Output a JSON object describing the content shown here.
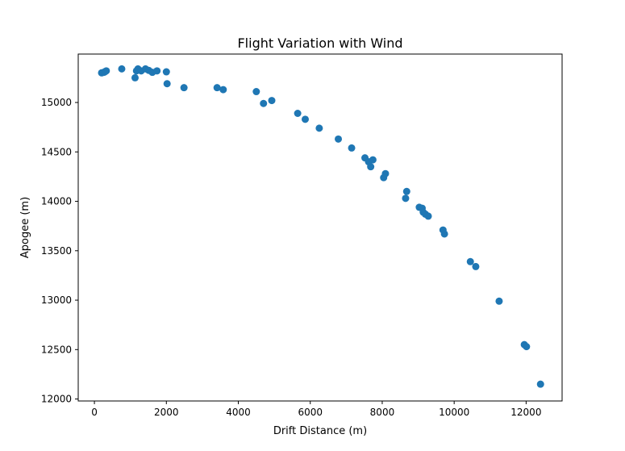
{
  "chart_data": {
    "type": "scatter",
    "title": "Flight Variation with Wind",
    "xlabel": "Drift Distance (m)",
    "ylabel": "Apogee (m)",
    "xlim": [
      -450,
      13000
    ],
    "ylim": [
      11980,
      15490
    ],
    "xticks": [
      0,
      2000,
      4000,
      6000,
      8000,
      10000,
      12000
    ],
    "yticks": [
      12000,
      12500,
      13000,
      13500,
      14000,
      14500,
      15000
    ],
    "marker_color": "#1f77b4",
    "grid": false,
    "points": [
      [
        200,
        15300
      ],
      [
        260,
        15305
      ],
      [
        290,
        15310
      ],
      [
        330,
        15320
      ],
      [
        760,
        15340
      ],
      [
        1130,
        15250
      ],
      [
        1170,
        15320
      ],
      [
        1210,
        15340
      ],
      [
        1300,
        15320
      ],
      [
        1420,
        15340
      ],
      [
        1510,
        15325
      ],
      [
        1610,
        15305
      ],
      [
        1740,
        15320
      ],
      [
        2000,
        15310
      ],
      [
        2020,
        15190
      ],
      [
        2490,
        15150
      ],
      [
        3410,
        15150
      ],
      [
        3580,
        15130
      ],
      [
        4500,
        15110
      ],
      [
        4700,
        14990
      ],
      [
        4930,
        15020
      ],
      [
        5650,
        14890
      ],
      [
        5860,
        14830
      ],
      [
        6250,
        14740
      ],
      [
        6780,
        14630
      ],
      [
        7150,
        14540
      ],
      [
        7520,
        14440
      ],
      [
        7620,
        14400
      ],
      [
        7680,
        14350
      ],
      [
        7740,
        14420
      ],
      [
        8040,
        14240
      ],
      [
        8090,
        14280
      ],
      [
        8650,
        14030
      ],
      [
        8680,
        14100
      ],
      [
        9030,
        13940
      ],
      [
        9110,
        13930
      ],
      [
        9140,
        13890
      ],
      [
        9200,
        13870
      ],
      [
        9280,
        13850
      ],
      [
        9690,
        13710
      ],
      [
        9730,
        13670
      ],
      [
        10450,
        13390
      ],
      [
        10600,
        13340
      ],
      [
        11250,
        12990
      ],
      [
        11950,
        12550
      ],
      [
        12010,
        12530
      ],
      [
        12400,
        12150
      ]
    ]
  }
}
